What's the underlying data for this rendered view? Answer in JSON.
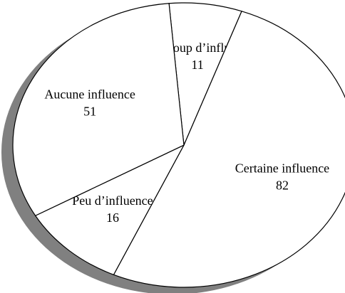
{
  "chart_data": {
    "type": "pie",
    "categories": [
      "Beaucoup d’influence",
      "Certaine influence",
      "Peu d’influence",
      "Aucune influence"
    ],
    "values": [
      11,
      82,
      16,
      51
    ],
    "color": "#ffffff",
    "shadow_color": "#808080"
  }
}
